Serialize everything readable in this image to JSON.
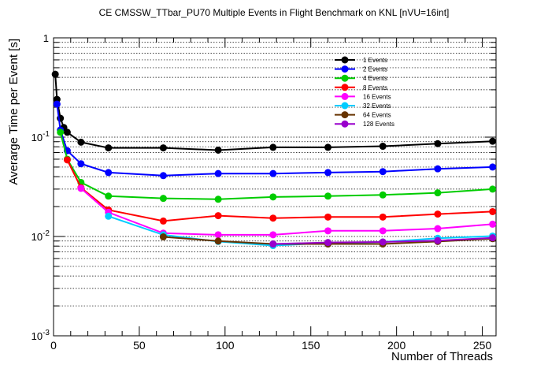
{
  "chart_data": {
    "type": "line",
    "title": "CE CMSSW_TTbar_PU70 Multiple Events in Flight Benchmark on KNL [nVU=16int]",
    "xlabel": "Number of Threads",
    "ylabel": "Averarge Time per Event [s]",
    "xlim": [
      0,
      258
    ],
    "ylim": [
      0.001,
      1
    ],
    "yscale": "log",
    "grid": "horizontal dotted",
    "legend_position": "top-right",
    "x_ticks": [
      0,
      50,
      100,
      150,
      200,
      250
    ],
    "x_tick_labels": [
      "0",
      "50",
      "100",
      "150",
      "200",
      "250"
    ],
    "y_ticks": [
      0.001,
      0.01,
      0.1,
      1
    ],
    "y_tick_labels": [
      {
        "base": "10",
        "exp": "-3"
      },
      {
        "base": "10",
        "exp": "-2"
      },
      {
        "base": "10",
        "exp": "-1"
      },
      {
        "base": "1",
        "exp": ""
      }
    ],
    "series": [
      {
        "name": "1 Events",
        "color": "#000000",
        "x": [
          1,
          2,
          4,
          6,
          8,
          16,
          32,
          64,
          96,
          128,
          160,
          192,
          224,
          256
        ],
        "y": [
          0.43,
          0.24,
          0.155,
          0.125,
          0.112,
          0.089,
          0.078,
          0.078,
          0.074,
          0.079,
          0.079,
          0.081,
          0.086,
          0.091
        ]
      },
      {
        "name": "2 Events",
        "color": "#0000ff",
        "x": [
          2,
          4,
          8,
          16,
          32,
          64,
          96,
          128,
          160,
          192,
          224,
          256
        ],
        "y": [
          0.215,
          0.118,
          0.073,
          0.054,
          0.044,
          0.041,
          0.043,
          0.043,
          0.044,
          0.045,
          0.048,
          0.05
        ]
      },
      {
        "name": "4 Events",
        "color": "#00cc00",
        "x": [
          4,
          8,
          16,
          32,
          64,
          96,
          128,
          160,
          192,
          224,
          256
        ],
        "y": [
          0.112,
          0.06,
          0.035,
          0.0255,
          0.0242,
          0.0237,
          0.025,
          0.0255,
          0.0262,
          0.0275,
          0.03
        ]
      },
      {
        "name": "8 Events",
        "color": "#ff0000",
        "x": [
          8,
          16,
          32,
          64,
          96,
          128,
          160,
          192,
          224,
          256
        ],
        "y": [
          0.059,
          0.031,
          0.0185,
          0.0143,
          0.0162,
          0.0153,
          0.0157,
          0.0157,
          0.0168,
          0.0178
        ]
      },
      {
        "name": "16 Events",
        "color": "#ff00ff",
        "x": [
          16,
          32,
          64,
          96,
          128,
          160,
          192,
          224,
          256
        ],
        "y": [
          0.0305,
          0.0175,
          0.0108,
          0.0104,
          0.0104,
          0.0114,
          0.0114,
          0.012,
          0.0133
        ]
      },
      {
        "name": "32 Events",
        "color": "#00ccff",
        "x": [
          32,
          64,
          96,
          128,
          160,
          192,
          224,
          256
        ],
        "y": [
          0.016,
          0.0104,
          0.0089,
          0.0081,
          0.0086,
          0.0088,
          0.0096,
          0.0101
        ]
      },
      {
        "name": "64 Events",
        "color": "#663300",
        "x": [
          64,
          96,
          128,
          160,
          192,
          224,
          256
        ],
        "y": [
          0.0099,
          0.009,
          0.0084,
          0.0084,
          0.0084,
          0.0089,
          0.0095
        ]
      },
      {
        "name": "128 Events",
        "color": "#9900cc",
        "x": [
          128,
          160,
          192,
          224,
          256
        ],
        "y": [
          0.0084,
          0.0087,
          0.0088,
          0.0091,
          0.0097
        ]
      }
    ]
  }
}
